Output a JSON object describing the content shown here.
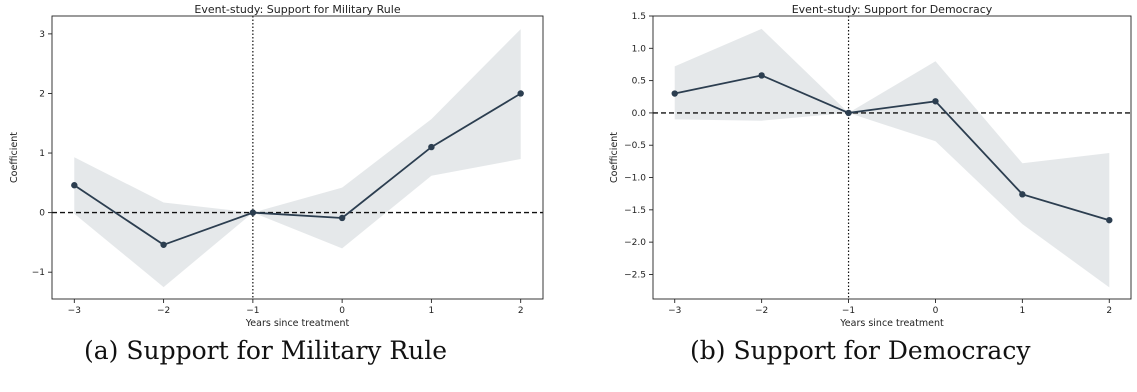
{
  "chart_data": [
    {
      "type": "line",
      "title": "Event-study: Support for Military Rule",
      "xlabel": "Years since treatment",
      "ylabel": "Coefficient",
      "x": [
        -3,
        -2,
        -1,
        0,
        1,
        2
      ],
      "x_ticks": [
        "−3",
        "−2",
        "−1",
        "0",
        "1",
        "2"
      ],
      "xlim": [
        -3.25,
        2.25
      ],
      "ylim": [
        -1.45,
        3.3
      ],
      "y_ticks": [
        -1,
        0,
        1,
        2,
        3
      ],
      "y_tick_labels": [
        "−1",
        "0",
        "1",
        "2",
        "3"
      ],
      "series": [
        {
          "values": [
            0.46,
            -0.54,
            0.0,
            -0.09,
            1.1,
            2.0
          ],
          "ci_lower": [
            -0.02,
            -1.25,
            0.0,
            -0.6,
            0.62,
            0.9
          ],
          "ci_upper": [
            0.93,
            0.17,
            0.0,
            0.42,
            1.57,
            3.08
          ],
          "color": "#2c3e50",
          "band_color": "#b4bec2"
        }
      ],
      "reference_lines": {
        "horizontal_dashed_y": 0,
        "vertical_dotted_x": -1
      },
      "grid": false,
      "caption": "(a) Support for Military Rule"
    },
    {
      "type": "line",
      "title": "Event-study: Support for Democracy",
      "xlabel": "Years since treatment",
      "ylabel": "Coefficient",
      "x": [
        -3,
        -2,
        -1,
        0,
        1,
        2
      ],
      "x_ticks": [
        "−3",
        "−2",
        "−1",
        "0",
        "1",
        "2"
      ],
      "xlim": [
        -3.25,
        2.25
      ],
      "ylim": [
        -2.88,
        1.5
      ],
      "y_ticks": [
        -2.5,
        -2.0,
        -1.5,
        -1.0,
        -0.5,
        0.0,
        0.5,
        1.0,
        1.5
      ],
      "y_tick_labels": [
        "−2.5",
        "−2.0",
        "−1.5",
        "−1.0",
        "−0.5",
        "0.0",
        "0.5",
        "1.0",
        "1.5"
      ],
      "series": [
        {
          "values": [
            0.3,
            0.58,
            0.0,
            0.18,
            -1.26,
            -1.66
          ],
          "ci_lower": [
            -0.1,
            -0.12,
            0.0,
            -0.44,
            -1.72,
            -2.7
          ],
          "ci_upper": [
            0.72,
            1.3,
            0.0,
            0.8,
            -0.78,
            -0.62
          ],
          "color": "#2c3e50",
          "band_color": "#b4bec2"
        }
      ],
      "reference_lines": {
        "horizontal_dashed_y": 0,
        "vertical_dotted_x": -1
      },
      "grid": false,
      "caption": "(b) Support for Democracy"
    }
  ]
}
